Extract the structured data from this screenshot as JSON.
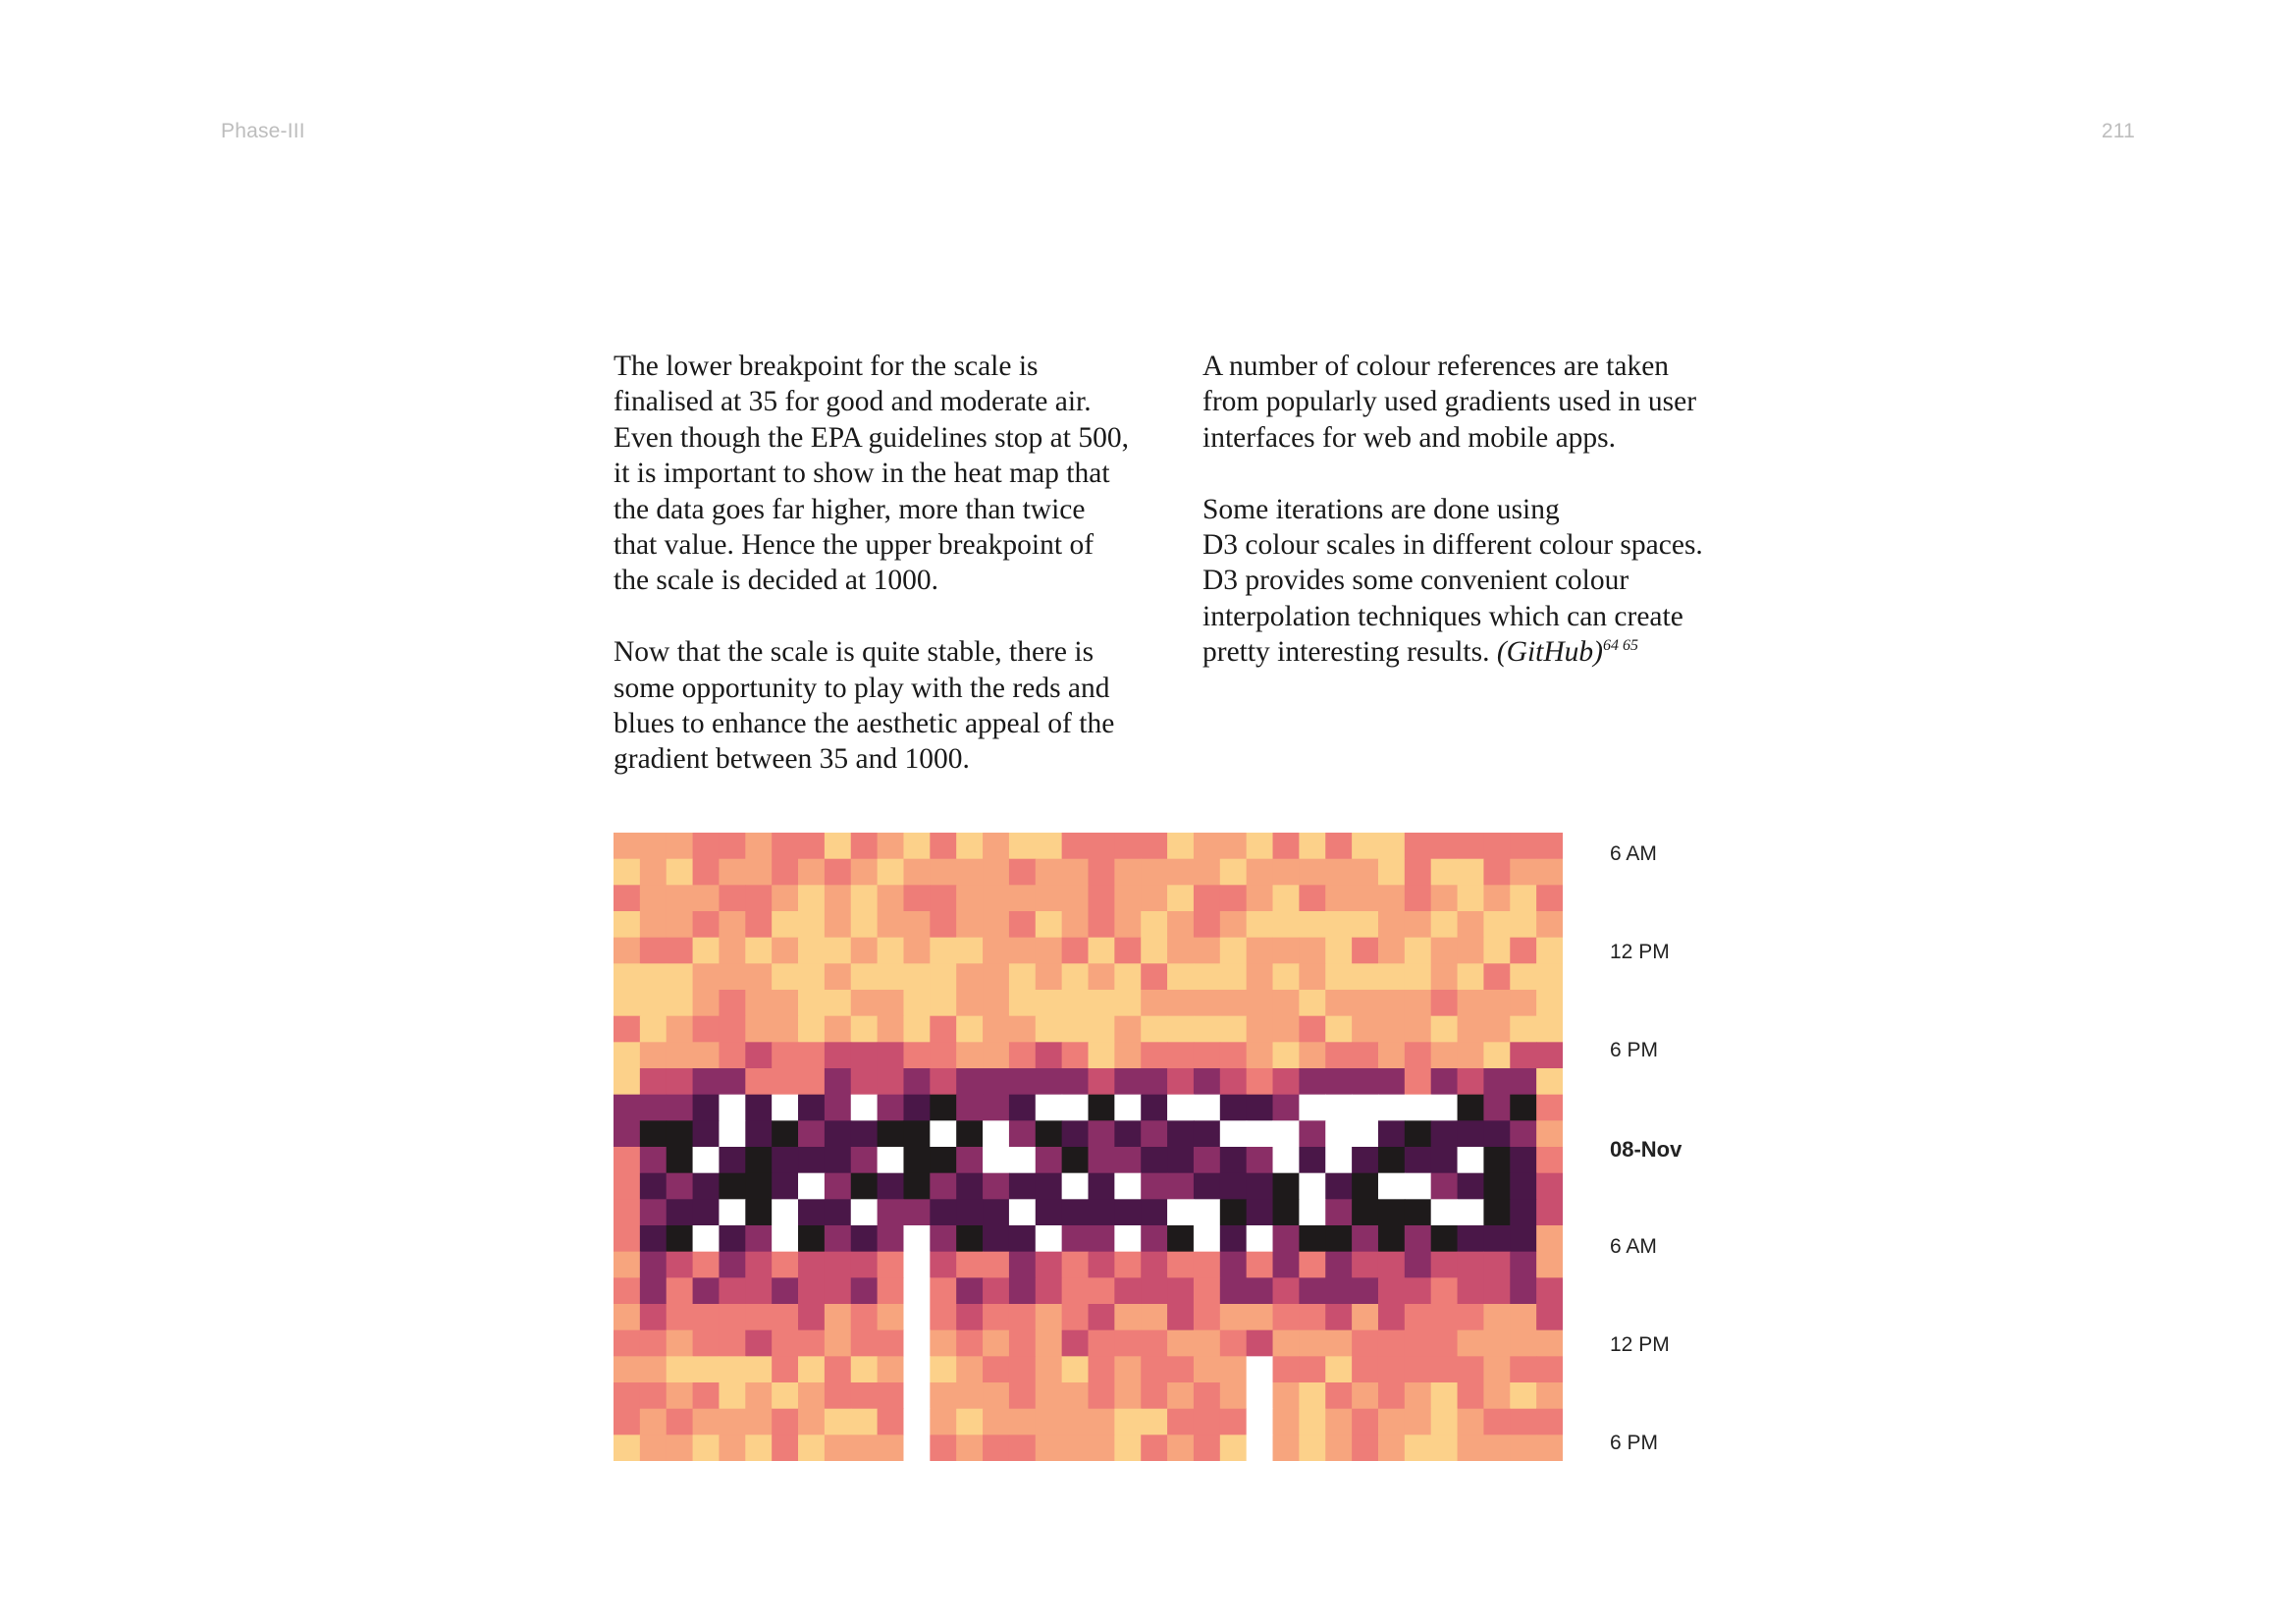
{
  "header": {
    "running_title": "Phase-III",
    "page_number": "211"
  },
  "body": {
    "left_column": {
      "paragraph_1": [
        "The lower breakpoint for the scale is",
        "finalised at 35 for good and moderate air.",
        "Even though the EPA guidelines stop at 500,",
        "it is important to show in the heat map that",
        "the data goes far higher, more than twice",
        "that value. Hence the upper breakpoint of",
        "the scale is decided at 1000."
      ],
      "paragraph_2": [
        "Now that the scale is quite stable, there is",
        "some opportunity to play with the reds and",
        "blues to enhance the aesthetic appeal of the",
        "gradient between 35 and 1000."
      ]
    },
    "right_column": {
      "paragraph_1": [
        "A number of colour references are taken",
        "from popularly used gradients used in user",
        "interfaces for web and mobile apps."
      ],
      "paragraph_2": [
        "Some iterations are done using",
        "D3 colour scales in different colour spaces.",
        "D3 provides some convenient colour",
        "interpolation techniques which can create"
      ],
      "paragraph_2_last_line": "pretty interesting results. ",
      "citation": "(GitHub)",
      "footnote_refs": "64 65"
    }
  },
  "figure": {
    "time_labels": [
      {
        "text": "6 AM",
        "bold": false
      },
      {
        "text": "12 PM",
        "bold": false
      },
      {
        "text": "6 PM",
        "bold": false
      },
      {
        "text": "08-Nov",
        "bold": true
      },
      {
        "text": "6 AM",
        "bold": false
      },
      {
        "text": "12 PM",
        "bold": false
      },
      {
        "text": "6 PM",
        "bold": false
      }
    ],
    "colors": {
      "low": "#fcd18a",
      "moderate": "#f7a57e",
      "mid": "#ee7d78",
      "high": "#c94f6f",
      "very_high": "#8a2e66",
      "severe": "#4a1748",
      "hazardous": "#1e1a1b",
      "no_data": "#ffffff"
    }
  }
}
